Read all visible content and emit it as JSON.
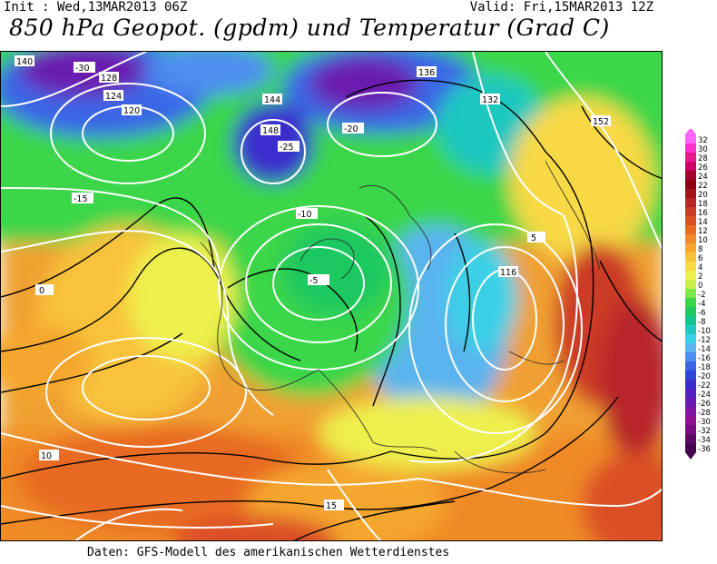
{
  "header": {
    "init": "Init : Wed,13MAR2013 06Z",
    "valid": "Valid: Fri,15MAR2013 12Z",
    "title": "850 hPa Geopot. (gpdm) und Temperatur (Grad C)"
  },
  "footer": "Daten: GFS-Modell des amerikanischen Wetterdienstes",
  "legend": {
    "levels": [
      "32",
      "30",
      "28",
      "26",
      "24",
      "22",
      "20",
      "18",
      "16",
      "14",
      "12",
      "10",
      "8",
      "6",
      "4",
      "2",
      "0",
      "-2",
      "-4",
      "-6",
      "-8",
      "-10",
      "-12",
      "-14",
      "-16",
      "-18",
      "-20",
      "-22",
      "-24",
      "-26",
      "-28",
      "-30",
      "-32",
      "-34",
      "-36"
    ],
    "colors": [
      "#ff66ff",
      "#ff33cc",
      "#e6198f",
      "#cc0066",
      "#a3002e",
      "#8f0010",
      "#a3141a",
      "#b8262a",
      "#cc3a28",
      "#db5025",
      "#e86a22",
      "#f08a26",
      "#f5a62e",
      "#f8c23a",
      "#f7d944",
      "#eef04e",
      "#c9ee4a",
      "#7ee84a",
      "#3ad64a",
      "#1dc860",
      "#12c58e",
      "#1fc8c0",
      "#3ad0e6",
      "#5ab4ee",
      "#4d8ef0",
      "#3a66e6",
      "#2e46d6",
      "#3a2ecc",
      "#5422c0",
      "#6a1ab0",
      "#7e14a0",
      "#8e1090",
      "#7a0c80",
      "#5e0866",
      "#44054e"
    ]
  },
  "contours": {
    "geopotential_labels": [
      "140",
      "128",
      "124",
      "120",
      "144",
      "148",
      "136",
      "132",
      "116",
      "152"
    ],
    "temperature_labels": [
      "-30",
      "-25",
      "-20",
      "-15",
      "-10",
      "-5",
      "0",
      "5",
      "10",
      "15"
    ]
  }
}
